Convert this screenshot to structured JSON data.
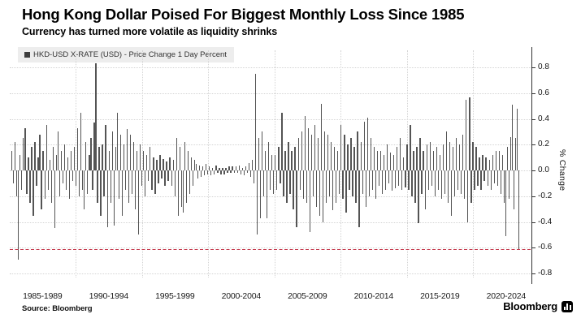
{
  "header": {
    "title": "Hong Kong Dollar Poised For Biggest Monthly Loss Since 1985",
    "subtitle": "Currency has turned more volatile as liquidity shrinks"
  },
  "legend": {
    "marker": "square-icon",
    "marker_color": "#3d3d3d",
    "label": "HKD-USD X-RATE (USD) - Price Change 1 Day Percent"
  },
  "y_axis": {
    "title": "% Change"
  },
  "footer": {
    "source": "Source: Bloomberg",
    "brand": "Bloomberg",
    "brand_icon": "bloomberg-terminal-icon"
  },
  "colors": {
    "bar": "#545454",
    "grid": "#d4d4d4",
    "reference_line": "#c53b4e",
    "axis": "#333333",
    "legend_background": "#ededed",
    "background": "#ffffff"
  },
  "chart_data": {
    "type": "bar",
    "title": "Hong Kong Dollar Poised For Biggest Monthly Loss Since 1985",
    "subtitle": "Currency has turned more volatile as liquidity shrinks",
    "series_name": "HKD-USD X-RATE (USD) - Price Change 1 Day Percent",
    "ylabel": "% Change",
    "ylim": [
      -0.9,
      0.9
    ],
    "y_ticks": [
      0.8,
      0.6,
      0.4,
      0.2,
      0.0,
      -0.2,
      -0.4,
      -0.6,
      -0.8
    ],
    "y_tick_labels": [
      "0.8",
      "0.6",
      "0.4",
      "0.2",
      "0.0",
      "-0.2",
      "-0.4",
      "-0.6",
      "-0.8"
    ],
    "x_interval_labels": [
      "1985-1989",
      "1990-1994",
      "1995-1999",
      "2000-2004",
      "2005-2009",
      "2010-2014",
      "2015-2019",
      "2020-2024"
    ],
    "x_gridline_years": [
      1990,
      1995,
      2000,
      2005,
      2010,
      2015,
      2020
    ],
    "x_start_year": 1985,
    "samples_per_year": 8,
    "grid": "dotted",
    "legend_position": "top-left",
    "reference_line": {
      "value": -0.61,
      "style": "dashed",
      "color": "#c53b4e"
    },
    "notable_points": {
      "record_low_1985": -0.69,
      "spike_1991": 0.83,
      "spike_2003": 0.75,
      "spike_2008": 0.52,
      "spikes_2019": [
        0.55,
        0.57
      ],
      "current_month_loss": -0.62
    },
    "values": [
      0.15,
      -0.1,
      0.22,
      -0.2,
      -0.69,
      0.12,
      -0.15,
      0.25,
      0.33,
      -0.18,
      0.1,
      -0.25,
      0.18,
      -0.35,
      0.22,
      -0.12,
      0.1,
      0.28,
      -0.3,
      0.15,
      -0.22,
      0.35,
      -0.15,
      0.08,
      -0.25,
      0.18,
      -0.45,
      0.12,
      0.3,
      -0.2,
      0.15,
      -0.1,
      0.2,
      -0.15,
      0.1,
      -0.22,
      0.15,
      -0.08,
      0.18,
      -0.12,
      0.33,
      -0.2,
      0.45,
      -0.15,
      -0.3,
      0.22,
      -0.18,
      0.12,
      0.25,
      -0.15,
      0.37,
      0.83,
      -0.25,
      0.18,
      -0.35,
      0.2,
      -0.2,
      0.35,
      -0.44,
      0.15,
      -0.25,
      0.3,
      -0.43,
      0.18,
      0.45,
      -0.22,
      0.28,
      -0.35,
      0.2,
      -0.15,
      0.32,
      -0.25,
      0.28,
      -0.18,
      0.22,
      -0.3,
      0.15,
      -0.5,
      0.2,
      -0.12,
      0.15,
      -0.2,
      0.12,
      -0.08,
      0.18,
      -0.15,
      0.1,
      -0.18,
      0.08,
      -0.1,
      0.12,
      -0.06,
      0.09,
      -0.12,
      0.07,
      -0.08,
      0.1,
      -0.12,
      0.08,
      -0.2,
      0.25,
      -0.35,
      0.18,
      -0.28,
      -0.33,
      0.22,
      -0.25,
      0.15,
      -0.18,
      0.1,
      -0.12,
      0.08,
      0.05,
      -0.06,
      0.04,
      -0.05,
      0.03,
      -0.04,
      0.05,
      -0.03,
      0.03,
      -0.04,
      0.02,
      -0.03,
      0.04,
      -0.02,
      0.02,
      -0.03,
      0.02,
      -0.03,
      0.02,
      -0.02,
      0.03,
      -0.02,
      0.03,
      -0.02,
      0.03,
      -0.02,
      0.04,
      -0.03,
      0.02,
      -0.04,
      0.03,
      -0.02,
      0.06,
      -0.05,
      0.08,
      -0.1,
      0.75,
      -0.5,
      0.25,
      -0.37,
      0.3,
      -0.2,
      0.15,
      -0.37,
      0.22,
      -0.15,
      0.12,
      -0.18,
      0.12,
      -0.15,
      0.18,
      -0.1,
      0.45,
      -0.2,
      0.15,
      -0.25,
      0.22,
      -0.18,
      0.15,
      -0.3,
      0.18,
      -0.44,
      0.25,
      -0.15,
      0.3,
      -0.22,
      0.42,
      -0.25,
      0.33,
      -0.48,
      0.28,
      -0.2,
      0.35,
      -0.28,
      0.25,
      -0.35,
      0.52,
      -0.4,
      0.3,
      -0.25,
      0.28,
      -0.2,
      0.22,
      -0.31,
      0.18,
      -0.25,
      0.15,
      -0.18,
      0.35,
      -0.22,
      0.28,
      -0.33,
      0.2,
      -0.15,
      0.25,
      -0.2,
      0.18,
      -0.25,
      0.3,
      -0.44,
      0.22,
      -0.18,
      0.38,
      -0.28,
      0.41,
      -0.2,
      0.25,
      -0.15,
      0.18,
      -0.22,
      0.15,
      -0.12,
      0.15,
      -0.18,
      0.12,
      -0.15,
      0.2,
      -0.1,
      0.14,
      -0.16,
      0.12,
      -0.14,
      0.18,
      -0.12,
      0.25,
      -0.15,
      0.1,
      -0.13,
      0.2,
      -0.15,
      0.35,
      -0.2,
      0.15,
      -0.25,
      0.18,
      -0.41,
      0.25,
      -0.18,
      0.15,
      -0.3,
      0.2,
      -0.15,
      0.22,
      -0.12,
      0.15,
      -0.2,
      0.18,
      -0.15,
      0.12,
      -0.22,
      0.2,
      -0.18,
      0.3,
      -0.25,
      0.22,
      -0.35,
      0.18,
      -0.2,
      0.25,
      -0.15,
      0.2,
      -0.18,
      0.28,
      -0.22,
      0.55,
      -0.4,
      0.57,
      -0.25,
      0.22,
      -0.15,
      0.18,
      -0.12,
      0.1,
      -0.15,
      0.12,
      -0.08,
      0.1,
      -0.12,
      0.08,
      -0.15,
      0.12,
      -0.1,
      0.15,
      -0.12,
      0.15,
      -0.18,
      0.12,
      -0.25,
      -0.51,
      0.18,
      -0.22,
      0.26,
      0.51,
      -0.3,
      0.25,
      0.48,
      -0.62
    ]
  }
}
